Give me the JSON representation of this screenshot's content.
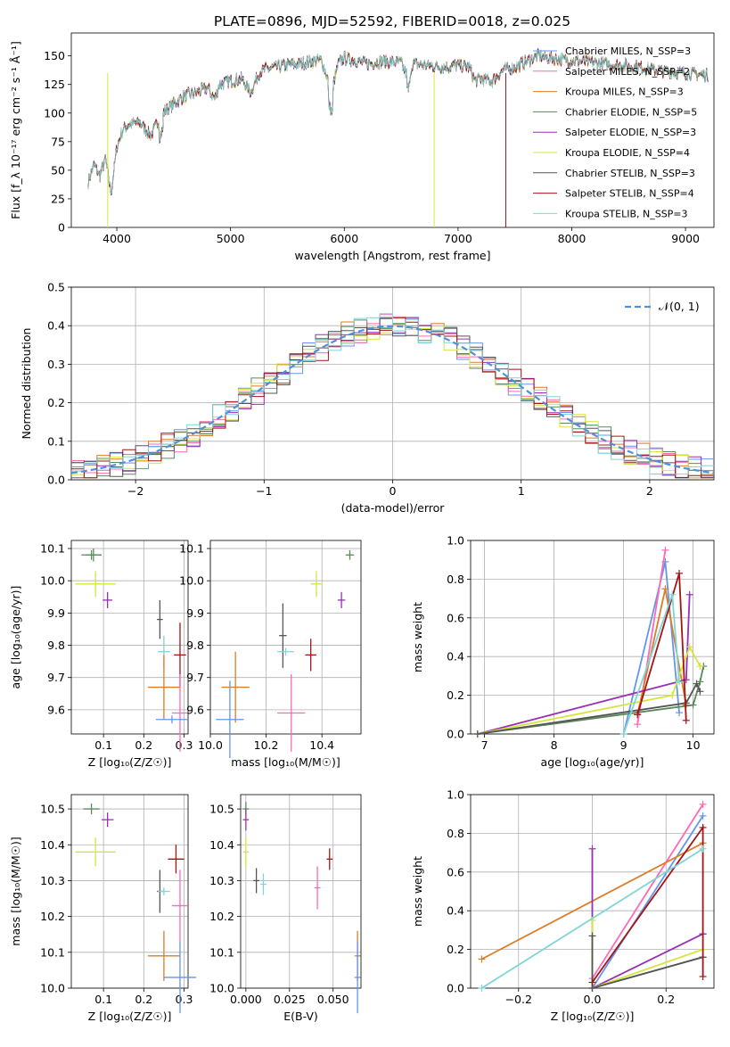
{
  "title": "PLATE=0896, MJD=52592, FIBERID=0018, z=0.025",
  "colors": [
    "#6495ed",
    "#ff69b4",
    "#dd7c27",
    "#5a8a5a",
    "#9a2fb4",
    "#d4e63c",
    "#555555",
    "#a51414",
    "#7fd4d8"
  ],
  "chart_data": [
    {
      "type": "line",
      "panel": "spectrum",
      "xlabel": "wavelength [Angstrom, rest frame]",
      "ylabel": "Flux [f_λ 10⁻¹⁷ erg cm⁻² s⁻¹ Å⁻¹]",
      "xlim": [
        3600,
        9250
      ],
      "ylim": [
        0,
        170
      ],
      "xticks": [
        4000,
        5000,
        6000,
        7000,
        8000,
        9000
      ],
      "yticks": [
        0,
        25,
        50,
        75,
        100,
        125,
        150
      ],
      "grid": false,
      "legend_position": "right",
      "series": [
        {
          "name": "Chabrier MILES, N_SSP=3"
        },
        {
          "name": "Salpeter MILES, N_SSP=2"
        },
        {
          "name": "Kroupa MILES, N_SSP=3"
        },
        {
          "name": "Chabrier ELODIE, N_SSP=5"
        },
        {
          "name": "Salpeter ELODIE, N_SSP=3"
        },
        {
          "name": "Kroupa ELODIE, N_SSP=4"
        },
        {
          "name": "Chabrier STELIB, N_SSP=3"
        },
        {
          "name": "Salpeter STELIB, N_SSP=4"
        },
        {
          "name": "Kroupa STELIB, N_SSP=3"
        }
      ],
      "spectrum_x": [
        3750,
        3800,
        3850,
        3900,
        3950,
        4000,
        4050,
        4100,
        4200,
        4300,
        4400,
        4500,
        4600,
        4700,
        4800,
        4861,
        4900,
        5000,
        5100,
        5175,
        5250,
        5300,
        5400,
        5500,
        5600,
        5700,
        5800,
        5890,
        5950,
        6000,
        6100,
        6200,
        6300,
        6400,
        6500,
        6563,
        6600,
        6700,
        6800,
        6900,
        7000,
        7100,
        7150,
        7200,
        7300,
        7400,
        7500,
        7600,
        7700,
        7800,
        7900,
        8000,
        8100,
        8200,
        8300,
        8400,
        8500,
        8600,
        8700,
        8800,
        8900,
        9000,
        9100,
        9200
      ],
      "spectrum_y": [
        40,
        55,
        45,
        60,
        30,
        70,
        85,
        90,
        92,
        80,
        100,
        108,
        115,
        118,
        122,
        112,
        125,
        128,
        130,
        118,
        135,
        138,
        140,
        142,
        143,
        145,
        146,
        120,
        144,
        148,
        146,
        143,
        145,
        145,
        144,
        130,
        143,
        142,
        141,
        140,
        142,
        140,
        128,
        130,
        128,
        138,
        140,
        145,
        150,
        148,
        147,
        146,
        145,
        144,
        143,
        142,
        141,
        140,
        138,
        137,
        136,
        135,
        134,
        133
      ],
      "dropouts": [
        {
          "x": 3920,
          "series": 5
        },
        {
          "x": 6790,
          "series": 5
        },
        {
          "x": 7420,
          "series": 7
        }
      ]
    },
    {
      "type": "histogram",
      "panel": "residuals",
      "xlabel": "(data-model)/error",
      "ylabel": "Normed distribution",
      "xlim": [
        -2.5,
        2.5
      ],
      "ylim": [
        0,
        0.5
      ],
      "xticks": [
        -2,
        -1,
        0,
        1,
        2
      ],
      "yticks": [
        0.0,
        0.1,
        0.2,
        0.3,
        0.4,
        0.5
      ],
      "grid": true,
      "legend": "𝒩(0, 1)",
      "legend_position": "top-right",
      "bin_width": 0.1
    },
    {
      "type": "scatter",
      "panel": "age_vs_Z",
      "xlabel": "Z [log₁₀(Z/Z☉)]",
      "ylabel": "age  [log₁₀(age/yr)]",
      "xlim": [
        0.02,
        0.31
      ],
      "ylim": [
        9.525,
        10.125
      ],
      "xticks": [
        0.1,
        0.2,
        0.3
      ],
      "yticks": [
        9.6,
        9.7,
        9.8,
        9.9,
        10.0,
        10.1
      ],
      "points": [
        {
          "x": 0.07,
          "y": 10.08,
          "xerr": 0.025,
          "yerr": 0.015,
          "series": 3
        },
        {
          "x": 0.075,
          "y": 10.08,
          "xerr": 0.02,
          "yerr": 0.02,
          "series": 3
        },
        {
          "x": 0.08,
          "y": 9.99,
          "xerr": 0.05,
          "yerr": 0.04,
          "series": 5
        },
        {
          "x": 0.11,
          "y": 9.94,
          "xerr": 0.012,
          "yerr": 0.025,
          "series": 4
        },
        {
          "x": 0.24,
          "y": 9.88,
          "xerr": 0.0,
          "yerr": 0.06,
          "series": 6
        },
        {
          "x": 0.25,
          "y": 9.78,
          "xerr": 0.015,
          "yerr": 0.05,
          "series": 8
        },
        {
          "x": 0.29,
          "y": 9.77,
          "xerr": 0.015,
          "yerr": 0.1,
          "series": 7
        },
        {
          "x": 0.25,
          "y": 9.67,
          "xerr": 0.04,
          "yerr": 0.1,
          "series": 2
        },
        {
          "x": 0.29,
          "y": 9.59,
          "xerr": 0.02,
          "yerr": 0.12,
          "series": 1
        },
        {
          "x": 0.27,
          "y": 9.57,
          "xerr": 0.04,
          "yerr": 0.0,
          "series": 0
        }
      ]
    },
    {
      "type": "scatter",
      "panel": "age_vs_mass",
      "xlabel": "mass [log₁₀(M/M☉)]",
      "ylabel": "",
      "xlim": [
        10.0,
        10.54
      ],
      "ylim": [
        9.525,
        10.125
      ],
      "xticks": [
        10.0,
        10.2,
        10.4
      ],
      "yticks": [
        9.6,
        9.7,
        9.8,
        9.9,
        10.0,
        10.1
      ],
      "points": [
        {
          "x": 10.5,
          "y": 10.08,
          "xerr": 0.015,
          "yerr": 0.015,
          "series": 3
        },
        {
          "x": 10.38,
          "y": 9.99,
          "xerr": 0.02,
          "yerr": 0.04,
          "series": 5
        },
        {
          "x": 10.47,
          "y": 9.94,
          "xerr": 0.012,
          "yerr": 0.025,
          "series": 4
        },
        {
          "x": 10.26,
          "y": 9.83,
          "xerr": 0.0,
          "yerr": 0.1,
          "series": 6
        },
        {
          "x": 10.27,
          "y": 9.78,
          "xerr": 0.03,
          "yerr": 0.0,
          "series": 8
        },
        {
          "x": 10.36,
          "y": 9.77,
          "xerr": 0.02,
          "yerr": 0.05,
          "series": 7
        },
        {
          "x": 10.09,
          "y": 9.67,
          "xerr": 0.05,
          "yerr": 0.11,
          "series": 2
        },
        {
          "x": 10.29,
          "y": 9.59,
          "xerr": 0.05,
          "yerr": 0.12,
          "series": 1
        },
        {
          "x": 10.07,
          "y": 9.57,
          "xerr": 0.05,
          "yerr": 0.12,
          "series": 0
        }
      ]
    },
    {
      "type": "line",
      "panel": "massweight_vs_age",
      "xlabel": "age  [log₁₀(age/yr)]",
      "ylabel": "mass weight",
      "xlim": [
        6.8,
        10.3
      ],
      "ylim": [
        0,
        1.0
      ],
      "xticks": [
        7,
        8,
        9,
        10
      ],
      "yticks": [
        0.0,
        0.2,
        0.4,
        0.6,
        0.8,
        1.0
      ],
      "series": [
        {
          "x": [
            9.0,
            9.6,
            9.8
          ],
          "y": [
            0.0,
            0.89,
            0.11
          ],
          "series": 0
        },
        {
          "x": [
            9.2,
            9.6
          ],
          "y": [
            0.05,
            0.95
          ],
          "series": 1
        },
        {
          "x": [
            9.2,
            9.6,
            9.9
          ],
          "y": [
            0.1,
            0.75,
            0.15
          ],
          "series": 2
        },
        {
          "x": [
            6.9,
            10.0,
            10.1,
            10.15
          ],
          "y": [
            0.0,
            0.15,
            0.27,
            0.35
          ],
          "series": 3
        },
        {
          "x": [
            6.9,
            9.9,
            9.95
          ],
          "y": [
            0.0,
            0.28,
            0.72
          ],
          "series": 4
        },
        {
          "x": [
            6.9,
            9.7,
            9.95,
            10.1
          ],
          "y": [
            0.0,
            0.2,
            0.45,
            0.35
          ],
          "series": 5
        },
        {
          "x": [
            6.9,
            9.9,
            10.05,
            10.1
          ],
          "y": [
            0.0,
            0.16,
            0.26,
            0.22
          ],
          "series": 6
        },
        {
          "x": [
            9.2,
            9.8,
            9.9
          ],
          "y": [
            0.1,
            0.83,
            0.07
          ],
          "series": 7
        },
        {
          "x": [
            9.0,
            9.7,
            9.8
          ],
          "y": [
            0.0,
            0.72,
            0.27
          ],
          "series": 8
        }
      ]
    },
    {
      "type": "scatter",
      "panel": "mass_vs_Z",
      "xlabel": "Z [log₁₀(Z/Z☉)]",
      "ylabel": "mass [log₁₀(M/M☉)]",
      "xlim": [
        0.02,
        0.31
      ],
      "ylim": [
        10.0,
        10.54
      ],
      "xticks": [
        0.1,
        0.2,
        0.3
      ],
      "yticks": [
        10.0,
        10.1,
        10.2,
        10.3,
        10.4,
        10.5
      ],
      "points": [
        {
          "x": 0.07,
          "y": 10.5,
          "xerr": 0.02,
          "yerr": 0.015,
          "series": 3
        },
        {
          "x": 0.08,
          "y": 10.38,
          "xerr": 0.05,
          "yerr": 0.04,
          "series": 5
        },
        {
          "x": 0.11,
          "y": 10.47,
          "xerr": 0.015,
          "yerr": 0.02,
          "series": 4
        },
        {
          "x": 0.24,
          "y": 10.27,
          "xerr": 0.0,
          "yerr": 0.06,
          "series": 6
        },
        {
          "x": 0.25,
          "y": 10.27,
          "xerr": 0.015,
          "yerr": 0.0,
          "series": 8
        },
        {
          "x": 0.28,
          "y": 10.36,
          "xerr": 0.02,
          "yerr": 0.04,
          "series": 7
        },
        {
          "x": 0.29,
          "y": 10.23,
          "xerr": 0.02,
          "yerr": 0.1,
          "series": 1
        },
        {
          "x": 0.25,
          "y": 10.09,
          "xerr": 0.04,
          "yerr": 0.07,
          "series": 2
        },
        {
          "x": 0.29,
          "y": 10.03,
          "xerr": 0.04,
          "yerr": 0.1,
          "series": 0
        }
      ]
    },
    {
      "type": "scatter",
      "panel": "mass_vs_EBV",
      "xlabel": "E(B-V)",
      "ylabel": "",
      "xlim": [
        -0.003,
        0.066
      ],
      "ylim": [
        10.0,
        10.54
      ],
      "xticks": [
        0.0,
        0.025,
        0.05
      ],
      "yticks": [
        10.0,
        10.1,
        10.2,
        10.3,
        10.4,
        10.5
      ],
      "points": [
        {
          "x": 0.0,
          "y": 10.5,
          "xerr": 0.0,
          "yerr": 0.02,
          "series": 3
        },
        {
          "x": 0.0,
          "y": 10.47,
          "xerr": 0.0,
          "yerr": 0.03,
          "series": 4
        },
        {
          "x": 0.0,
          "y": 10.38,
          "xerr": 0.0,
          "yerr": 0.04,
          "series": 5
        },
        {
          "x": 0.006,
          "y": 10.3,
          "xerr": 0.0,
          "yerr": 0.035,
          "series": 6
        },
        {
          "x": 0.01,
          "y": 10.29,
          "xerr": 0.0,
          "yerr": 0.03,
          "series": 8
        },
        {
          "x": 0.041,
          "y": 10.28,
          "xerr": 0.0,
          "yerr": 0.06,
          "series": 1
        },
        {
          "x": 0.048,
          "y": 10.36,
          "xerr": 0.0,
          "yerr": 0.03,
          "series": 7
        },
        {
          "x": 0.064,
          "y": 10.09,
          "xerr": 0.0,
          "yerr": 0.07,
          "series": 2
        },
        {
          "x": 0.064,
          "y": 10.03,
          "xerr": 0.0,
          "yerr": 0.1,
          "series": 0
        }
      ]
    },
    {
      "type": "line",
      "panel": "massweight_vs_Z",
      "xlabel": "Z [log₁₀(Z/Z☉)]",
      "ylabel": "mass weight",
      "xlim": [
        -0.33,
        0.33
      ],
      "ylim": [
        0,
        1.0
      ],
      "xticks": [
        -0.2,
        0.0,
        0.2
      ],
      "yticks": [
        0.0,
        0.2,
        0.4,
        0.6,
        0.8,
        1.0
      ],
      "series": [
        {
          "x": [
            0.0,
            0.3
          ],
          "y": [
            0.0,
            0.89
          ],
          "series": 0
        },
        {
          "x": [
            0.0,
            0.3
          ],
          "y": [
            0.05,
            0.95
          ],
          "series": 1
        },
        {
          "x": [
            -0.3,
            0.3
          ],
          "y": [
            0.15,
            0.75
          ],
          "series": 2
        },
        {
          "x": [
            0.0,
            0.3
          ],
          "y": [
            0.0,
            0.16
          ],
          "series": 3
        },
        {
          "x": [
            0.0,
            0.0,
            0.3,
            0.3
          ],
          "y": [
            0.72,
            0.0,
            0.28,
            0.28
          ],
          "series": 4
        },
        {
          "x": [
            0.0,
            0.0,
            0.3
          ],
          "y": [
            0.35,
            0.0,
            0.2
          ],
          "series": 5
        },
        {
          "x": [
            0.0,
            0.0,
            0.3
          ],
          "y": [
            0.27,
            0.0,
            0.16
          ],
          "series": 6
        },
        {
          "x": [
            0.0,
            0.3,
            0.3
          ],
          "y": [
            0.03,
            0.83,
            0.06
          ],
          "series": 7
        },
        {
          "x": [
            -0.3,
            0.3
          ],
          "y": [
            0.0,
            0.72
          ],
          "series": 8
        }
      ]
    }
  ]
}
